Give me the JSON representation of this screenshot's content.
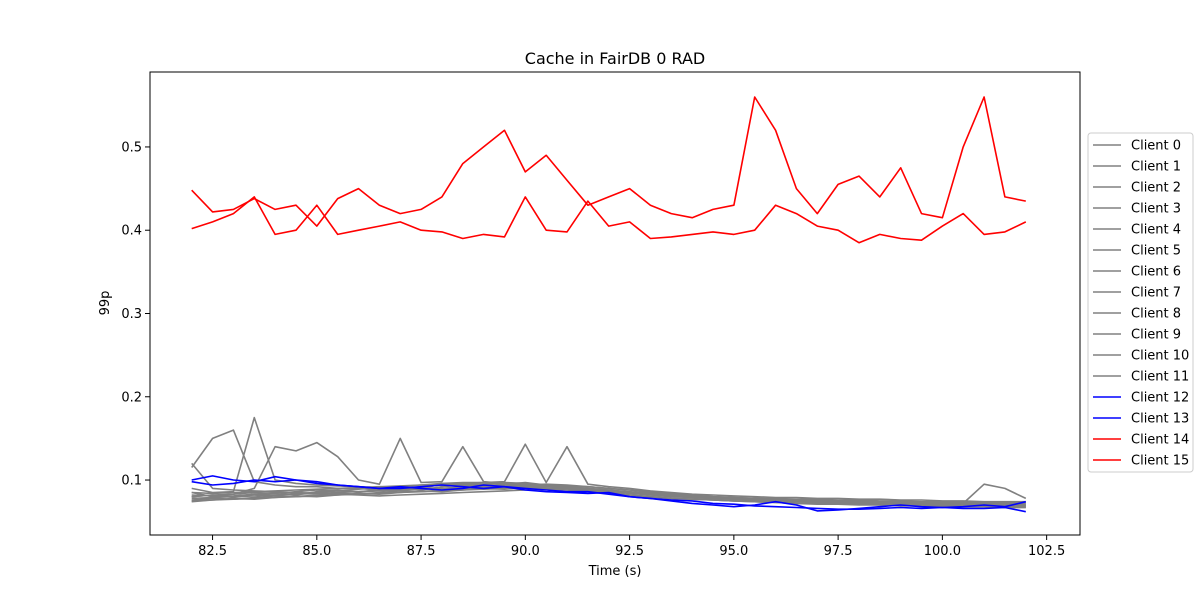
{
  "chart_data": {
    "type": "line",
    "title": "Cache in  FairDB 0 RAD",
    "xlabel": "Time (s)",
    "ylabel": "99p",
    "xlim": [
      81.0,
      103.3
    ],
    "ylim": [
      0.034,
      0.59
    ],
    "xticks": [
      82.5,
      85.0,
      87.5,
      90.0,
      92.5,
      95.0,
      97.5,
      100.0,
      102.5
    ],
    "xtick_labels": [
      "82.5",
      "85.0",
      "87.5",
      "90.0",
      "92.5",
      "95.0",
      "97.5",
      "100.0",
      "102.5"
    ],
    "yticks": [
      0.1,
      0.2,
      0.3,
      0.4,
      0.5
    ],
    "ytick_labels": [
      "0.1",
      "0.2",
      "0.3",
      "0.4",
      "0.5"
    ],
    "grid": false,
    "legend_position": "outside-right",
    "x": [
      82.0,
      82.5,
      83.0,
      83.5,
      84.0,
      84.5,
      85.0,
      85.5,
      86.0,
      86.5,
      87.0,
      87.5,
      88.0,
      88.5,
      89.0,
      89.5,
      90.0,
      90.5,
      91.0,
      91.5,
      92.0,
      92.5,
      93.0,
      93.5,
      94.0,
      94.5,
      95.0,
      95.5,
      96.0,
      96.5,
      97.0,
      97.5,
      98.0,
      98.5,
      99.0,
      99.5,
      100.0,
      100.5,
      101.0,
      101.5,
      102.0
    ],
    "series": [
      {
        "name": "Client 0",
        "color": "#808080",
        "values": [
          0.115,
          0.15,
          0.16,
          0.098,
          0.094,
          0.092,
          0.092,
          0.09,
          0.09,
          0.088,
          0.088,
          0.09,
          0.095,
          0.095,
          0.095,
          0.093,
          0.092,
          0.09,
          0.09,
          0.087,
          0.085,
          0.082,
          0.08,
          0.078,
          0.077,
          0.076,
          0.075,
          0.075,
          0.074,
          0.074,
          0.073,
          0.073,
          0.073,
          0.072,
          0.072,
          0.071,
          0.071,
          0.071,
          0.07,
          0.07,
          0.07
        ]
      },
      {
        "name": "Client 1",
        "color": "#808080",
        "values": [
          0.09,
          0.085,
          0.086,
          0.175,
          0.1,
          0.096,
          0.094,
          0.093,
          0.092,
          0.091,
          0.092,
          0.094,
          0.096,
          0.097,
          0.097,
          0.095,
          0.094,
          0.093,
          0.092,
          0.09,
          0.088,
          0.085,
          0.082,
          0.08,
          0.079,
          0.078,
          0.077,
          0.077,
          0.076,
          0.076,
          0.075,
          0.075,
          0.075,
          0.074,
          0.074,
          0.073,
          0.073,
          0.073,
          0.072,
          0.072,
          0.072
        ]
      },
      {
        "name": "Client 2",
        "color": "#808080",
        "values": [
          0.08,
          0.082,
          0.083,
          0.09,
          0.14,
          0.135,
          0.145,
          0.128,
          0.1,
          0.095,
          0.15,
          0.097,
          0.098,
          0.14,
          0.098,
          0.096,
          0.095,
          0.094,
          0.093,
          0.092,
          0.09,
          0.088,
          0.085,
          0.083,
          0.081,
          0.08,
          0.079,
          0.078,
          0.078,
          0.077,
          0.077,
          0.076,
          0.076,
          0.075,
          0.075,
          0.074,
          0.074,
          0.074,
          0.073,
          0.073,
          0.073
        ]
      },
      {
        "name": "Client 3",
        "color": "#808080",
        "values": [
          0.085,
          0.084,
          0.085,
          0.086,
          0.087,
          0.088,
          0.089,
          0.09,
          0.091,
          0.092,
          0.093,
          0.094,
          0.095,
          0.096,
          0.097,
          0.098,
          0.143,
          0.097,
          0.14,
          0.095,
          0.092,
          0.09,
          0.087,
          0.085,
          0.083,
          0.082,
          0.081,
          0.08,
          0.079,
          0.079,
          0.078,
          0.078,
          0.077,
          0.077,
          0.076,
          0.076,
          0.075,
          0.075,
          0.074,
          0.074,
          0.074
        ]
      },
      {
        "name": "Client 4",
        "color": "#808080",
        "values": [
          0.078,
          0.079,
          0.08,
          0.081,
          0.082,
          0.083,
          0.084,
          0.085,
          0.086,
          0.087,
          0.088,
          0.089,
          0.09,
          0.091,
          0.092,
          0.093,
          0.094,
          0.095,
          0.094,
          0.092,
          0.09,
          0.088,
          0.086,
          0.084,
          0.082,
          0.08,
          0.079,
          0.078,
          0.077,
          0.076,
          0.075,
          0.074,
          0.073,
          0.072,
          0.071,
          0.071,
          0.07,
          0.07,
          0.069,
          0.069,
          0.069
        ]
      },
      {
        "name": "Client 5",
        "color": "#808080",
        "values": [
          0.075,
          0.076,
          0.077,
          0.078,
          0.079,
          0.08,
          0.081,
          0.082,
          0.083,
          0.084,
          0.085,
          0.086,
          0.087,
          0.088,
          0.089,
          0.09,
          0.091,
          0.092,
          0.091,
          0.089,
          0.087,
          0.085,
          0.083,
          0.081,
          0.079,
          0.078,
          0.077,
          0.076,
          0.075,
          0.074,
          0.073,
          0.072,
          0.072,
          0.071,
          0.071,
          0.07,
          0.07,
          0.07,
          0.069,
          0.069,
          0.069
        ]
      },
      {
        "name": "Client 6",
        "color": "#808080",
        "values": [
          0.082,
          0.081,
          0.083,
          0.085,
          0.084,
          0.086,
          0.088,
          0.087,
          0.089,
          0.091,
          0.09,
          0.092,
          0.094,
          0.093,
          0.095,
          0.097,
          0.096,
          0.094,
          0.092,
          0.09,
          0.088,
          0.086,
          0.084,
          0.082,
          0.081,
          0.08,
          0.079,
          0.078,
          0.077,
          0.076,
          0.076,
          0.075,
          0.075,
          0.074,
          0.074,
          0.073,
          0.073,
          0.072,
          0.072,
          0.071,
          0.071
        ]
      },
      {
        "name": "Client 7",
        "color": "#808080",
        "values": [
          0.076,
          0.078,
          0.077,
          0.079,
          0.081,
          0.08,
          0.082,
          0.084,
          0.083,
          0.085,
          0.087,
          0.086,
          0.088,
          0.09,
          0.089,
          0.091,
          0.093,
          0.092,
          0.09,
          0.088,
          0.086,
          0.084,
          0.082,
          0.08,
          0.079,
          0.078,
          0.077,
          0.076,
          0.075,
          0.074,
          0.073,
          0.072,
          0.072,
          0.071,
          0.071,
          0.07,
          0.07,
          0.069,
          0.069,
          0.068,
          0.068
        ]
      },
      {
        "name": "Client 8",
        "color": "#808080",
        "values": [
          0.08,
          0.082,
          0.079,
          0.083,
          0.085,
          0.082,
          0.086,
          0.088,
          0.085,
          0.089,
          0.091,
          0.088,
          0.092,
          0.094,
          0.091,
          0.095,
          0.097,
          0.094,
          0.092,
          0.089,
          0.087,
          0.085,
          0.083,
          0.081,
          0.08,
          0.079,
          0.078,
          0.077,
          0.076,
          0.075,
          0.075,
          0.074,
          0.074,
          0.073,
          0.073,
          0.072,
          0.072,
          0.071,
          0.071,
          0.07,
          0.07
        ]
      },
      {
        "name": "Client 9",
        "color": "#808080",
        "values": [
          0.074,
          0.076,
          0.078,
          0.077,
          0.079,
          0.081,
          0.08,
          0.082,
          0.084,
          0.083,
          0.085,
          0.087,
          0.086,
          0.088,
          0.09,
          0.089,
          0.091,
          0.09,
          0.088,
          0.086,
          0.084,
          0.082,
          0.08,
          0.078,
          0.077,
          0.076,
          0.075,
          0.074,
          0.073,
          0.072,
          0.072,
          0.071,
          0.071,
          0.07,
          0.07,
          0.069,
          0.069,
          0.068,
          0.068,
          0.067,
          0.067
        ]
      },
      {
        "name": "Client 10",
        "color": "#808080",
        "values": [
          0.12,
          0.09,
          0.088,
          0.087,
          0.086,
          0.085,
          0.084,
          0.083,
          0.082,
          0.081,
          0.082,
          0.083,
          0.084,
          0.085,
          0.086,
          0.087,
          0.088,
          0.089,
          0.088,
          0.086,
          0.084,
          0.082,
          0.08,
          0.078,
          0.077,
          0.076,
          0.075,
          0.074,
          0.073,
          0.072,
          0.071,
          0.071,
          0.07,
          0.07,
          0.069,
          0.069,
          0.068,
          0.068,
          0.068,
          0.067,
          0.067
        ]
      },
      {
        "name": "Client 11",
        "color": "#808080",
        "values": [
          0.085,
          0.08,
          0.081,
          0.083,
          0.082,
          0.084,
          0.085,
          0.087,
          0.086,
          0.088,
          0.089,
          0.091,
          0.09,
          0.092,
          0.093,
          0.095,
          0.094,
          0.093,
          0.091,
          0.089,
          0.087,
          0.085,
          0.083,
          0.081,
          0.08,
          0.079,
          0.078,
          0.077,
          0.076,
          0.076,
          0.075,
          0.075,
          0.074,
          0.074,
          0.073,
          0.073,
          0.072,
          0.072,
          0.095,
          0.09,
          0.078
        ]
      },
      {
        "name": "Client 12",
        "color": "#0000ff",
        "values": [
          0.098,
          0.094,
          0.096,
          0.1,
          0.098,
          0.1,
          0.096,
          0.094,
          0.092,
          0.09,
          0.092,
          0.09,
          0.088,
          0.09,
          0.094,
          0.092,
          0.088,
          0.086,
          0.085,
          0.084,
          0.085,
          0.08,
          0.078,
          0.076,
          0.075,
          0.072,
          0.071,
          0.069,
          0.068,
          0.067,
          0.066,
          0.065,
          0.065,
          0.066,
          0.067,
          0.066,
          0.067,
          0.066,
          0.066,
          0.067,
          0.062
        ]
      },
      {
        "name": "Client 13",
        "color": "#0000ff",
        "values": [
          0.1,
          0.105,
          0.1,
          0.098,
          0.104,
          0.1,
          0.098,
          0.094,
          0.092,
          0.09,
          0.09,
          0.092,
          0.094,
          0.092,
          0.09,
          0.092,
          0.09,
          0.088,
          0.086,
          0.086,
          0.083,
          0.08,
          0.078,
          0.075,
          0.072,
          0.07,
          0.068,
          0.07,
          0.074,
          0.07,
          0.063,
          0.064,
          0.066,
          0.068,
          0.07,
          0.068,
          0.067,
          0.068,
          0.07,
          0.068,
          0.074
        ]
      },
      {
        "name": "Client 14",
        "color": "#ff0000",
        "values": [
          0.448,
          0.422,
          0.425,
          0.438,
          0.425,
          0.43,
          0.405,
          0.438,
          0.45,
          0.43,
          0.42,
          0.425,
          0.44,
          0.48,
          0.5,
          0.52,
          0.47,
          0.49,
          0.46,
          0.43,
          0.44,
          0.45,
          0.43,
          0.42,
          0.415,
          0.425,
          0.43,
          0.56,
          0.52,
          0.45,
          0.42,
          0.455,
          0.465,
          0.44,
          0.475,
          0.42,
          0.415,
          0.5,
          0.56,
          0.44,
          0.435
        ]
      },
      {
        "name": "Client 15",
        "color": "#ff0000",
        "values": [
          0.402,
          0.41,
          0.42,
          0.44,
          0.395,
          0.4,
          0.43,
          0.395,
          0.4,
          0.405,
          0.41,
          0.4,
          0.398,
          0.39,
          0.395,
          0.392,
          0.44,
          0.4,
          0.398,
          0.435,
          0.405,
          0.41,
          0.39,
          0.392,
          0.395,
          0.398,
          0.395,
          0.4,
          0.43,
          0.42,
          0.405,
          0.4,
          0.385,
          0.395,
          0.39,
          0.388,
          0.405,
          0.42,
          0.395,
          0.398,
          0.41
        ]
      }
    ]
  }
}
